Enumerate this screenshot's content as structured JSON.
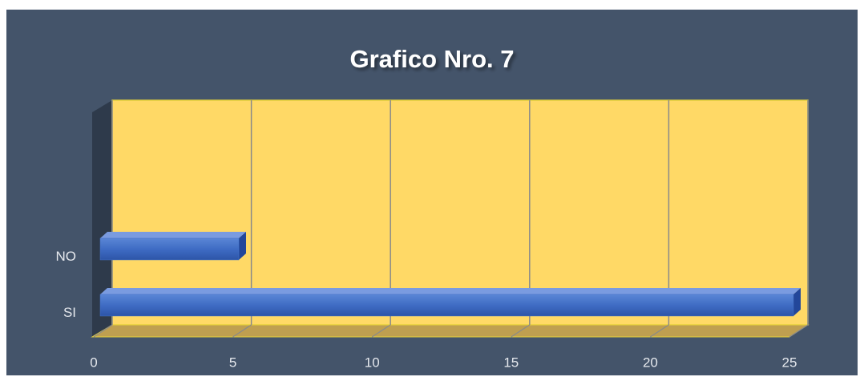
{
  "chart_data": {
    "type": "bar",
    "title": "Grafico Nro. 7",
    "categories": [
      "NO",
      "SI"
    ],
    "values": [
      5,
      25
    ],
    "color": "#4472c4",
    "xlim": [
      0,
      25
    ],
    "xticks": [
      0,
      5,
      10,
      15,
      20,
      25
    ],
    "grid": true
  }
}
